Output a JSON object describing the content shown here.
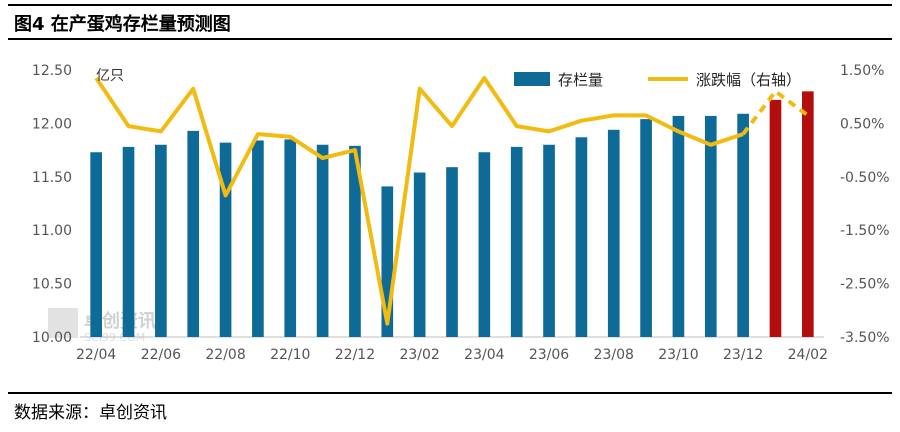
{
  "title": "图4  在产蛋鸡存栏量预测图",
  "source": "数据来源：卓创资讯",
  "watermark": {
    "main": "卓创资讯",
    "sub": "SCI99.COM"
  },
  "colors": {
    "bar": "#0e6a96",
    "bar_forecast": "#b40d0d",
    "line": "#f2bb11"
  },
  "chart_data": {
    "type": "bar",
    "unit_left": "亿只",
    "x_tick_labels": [
      "22/04",
      "22/06",
      "22/08",
      "22/10",
      "22/12",
      "23/02",
      "23/04",
      "23/06",
      "23/08",
      "23/10",
      "23/12",
      "24/02"
    ],
    "y_left_ticks": [
      "12.50",
      "12.00",
      "11.50",
      "11.00",
      "10.50",
      "10.00"
    ],
    "y_right_ticks": [
      "1.50%",
      "0.50%",
      "-0.50%",
      "-1.50%",
      "-2.50%",
      "-3.50%"
    ],
    "ylim_left": [
      10.0,
      12.5
    ],
    "ylim_right": [
      -3.5,
      1.5
    ],
    "categories": [
      "22/04",
      "22/05",
      "22/06",
      "22/07",
      "22/08",
      "22/09",
      "22/10",
      "22/11",
      "22/12",
      "23/01",
      "23/02",
      "23/03",
      "23/04",
      "23/05",
      "23/06",
      "23/07",
      "23/08",
      "23/09",
      "23/10",
      "23/11",
      "23/12",
      "24/01",
      "24/02"
    ],
    "series": [
      {
        "name": "存栏量",
        "axis": "left",
        "type": "bar",
        "values": [
          11.73,
          11.78,
          11.8,
          11.93,
          11.82,
          11.84,
          11.85,
          11.8,
          11.79,
          11.41,
          11.54,
          11.59,
          11.73,
          11.78,
          11.8,
          11.87,
          11.94,
          12.04,
          12.07,
          12.07,
          12.09,
          12.22,
          12.3
        ],
        "forecast_from_index": 21
      },
      {
        "name": "涨跌幅（右轴）",
        "axis": "right",
        "type": "line",
        "values": [
          1.35,
          0.45,
          0.35,
          1.15,
          -0.85,
          0.3,
          0.25,
          -0.15,
          0.0,
          -3.25,
          1.15,
          0.45,
          1.35,
          0.45,
          0.35,
          0.55,
          0.65,
          0.65,
          0.35,
          0.1,
          0.3,
          1.1,
          0.65
        ],
        "dashed_from_index": 20
      }
    ],
    "legend_position": "top-right",
    "grid": false
  }
}
